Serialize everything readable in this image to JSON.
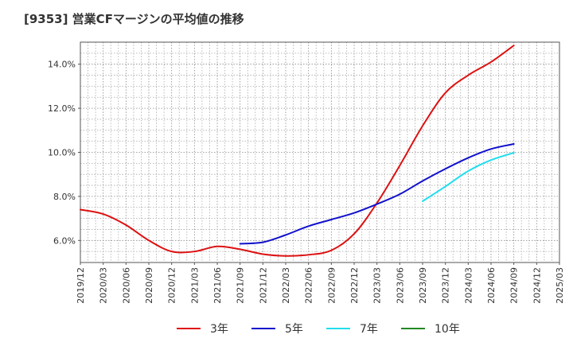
{
  "chart_data": {
    "type": "line",
    "title": "[9353]  営業CFマージンの平均値の推移",
    "xlabel": "",
    "ylabel": "",
    "x_ticks": [
      "2019/12",
      "2020/03",
      "2020/06",
      "2020/09",
      "2020/12",
      "2021/03",
      "2021/06",
      "2021/09",
      "2021/12",
      "2022/03",
      "2022/06",
      "2022/09",
      "2022/12",
      "2023/03",
      "2023/06",
      "2023/09",
      "2023/12",
      "2024/03",
      "2024/06",
      "2024/09",
      "2024/12",
      "2025/03"
    ],
    "y_ticks": [
      "6.0%",
      "8.0%",
      "10.0%",
      "12.0%",
      "14.0%"
    ],
    "ylim": [
      5.0,
      15.0
    ],
    "grid": true,
    "legend_position": "bottom",
    "series": [
      {
        "name": "3年",
        "color": "#dd1111",
        "points": [
          [
            "2019/12",
            7.4
          ],
          [
            "2020/03",
            7.2
          ],
          [
            "2020/06",
            6.7
          ],
          [
            "2020/09",
            6.0
          ],
          [
            "2020/12",
            5.5
          ],
          [
            "2021/03",
            5.5
          ],
          [
            "2021/06",
            5.73
          ],
          [
            "2021/09",
            5.6
          ],
          [
            "2021/12",
            5.38
          ],
          [
            "2022/03",
            5.3
          ],
          [
            "2022/06",
            5.35
          ],
          [
            "2022/09",
            5.55
          ],
          [
            "2022/12",
            6.3
          ],
          [
            "2023/03",
            7.7
          ],
          [
            "2023/06",
            9.4
          ],
          [
            "2023/09",
            11.2
          ],
          [
            "2023/12",
            12.7
          ],
          [
            "2024/03",
            13.5
          ],
          [
            "2024/06",
            14.1
          ],
          [
            "2024/09",
            14.85
          ]
        ]
      },
      {
        "name": "5年",
        "color": "#1111cc",
        "points": [
          [
            "2021/09",
            5.85
          ],
          [
            "2021/12",
            5.92
          ],
          [
            "2022/03",
            6.25
          ],
          [
            "2022/06",
            6.65
          ],
          [
            "2022/09",
            6.95
          ],
          [
            "2022/12",
            7.25
          ],
          [
            "2023/03",
            7.65
          ],
          [
            "2023/06",
            8.1
          ],
          [
            "2023/09",
            8.7
          ],
          [
            "2023/12",
            9.25
          ],
          [
            "2024/03",
            9.75
          ],
          [
            "2024/06",
            10.15
          ],
          [
            "2024/09",
            10.38
          ]
        ]
      },
      {
        "name": "7年",
        "color": "#22ddee",
        "points": [
          [
            "2023/09",
            7.78
          ],
          [
            "2023/12",
            8.45
          ],
          [
            "2024/03",
            9.15
          ],
          [
            "2024/06",
            9.65
          ],
          [
            "2024/09",
            9.98
          ]
        ]
      },
      {
        "name": "10年",
        "color": "#228822",
        "points": []
      }
    ]
  }
}
